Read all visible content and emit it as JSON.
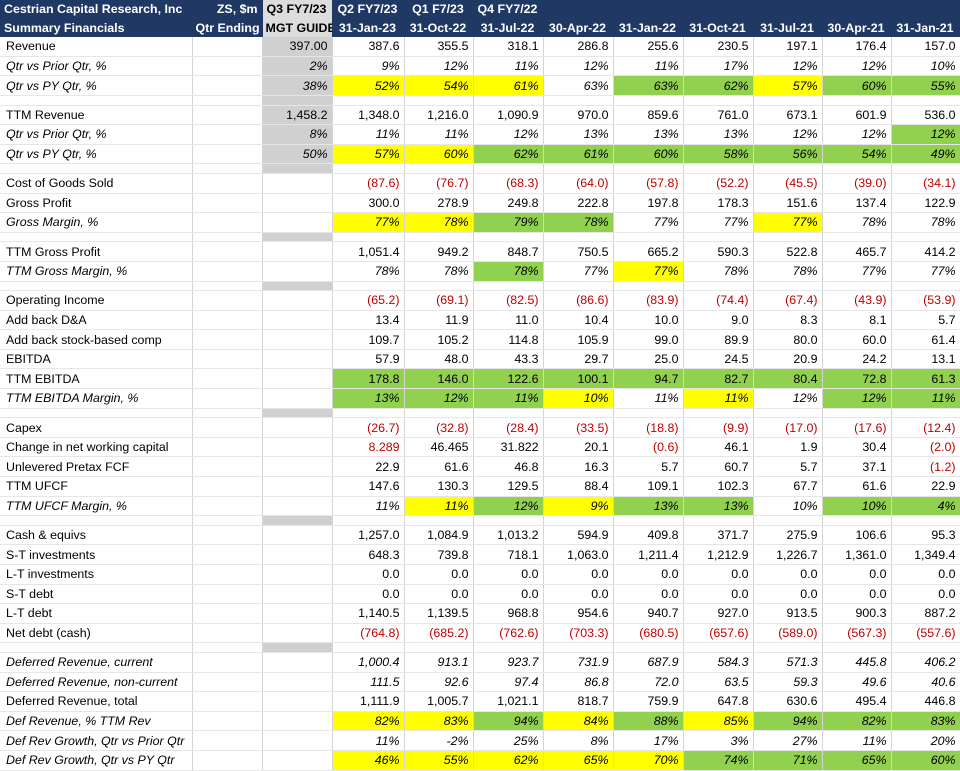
{
  "header": {
    "r1": [
      "Cestrian Capital Research, Inc",
      "ZS, $m",
      "Q3 FY7/23",
      "Q2 FY7/23",
      "Q1 F7/23",
      "Q4 FY7/22",
      "",
      "",
      "",
      "",
      "",
      ""
    ],
    "r2": [
      "Summary Financials",
      "Qtr Ending",
      "MGT GUIDE",
      "31-Jan-23",
      "31-Oct-22",
      "31-Jul-22",
      "30-Apr-22",
      "31-Jan-22",
      "31-Oct-21",
      "31-Jul-21",
      "30-Apr-21",
      "31-Jan-21"
    ]
  },
  "colors": {
    "header_bg": "#1f3864",
    "yellow": "#ffff00",
    "green": "#92d050",
    "grey": "#d0d0d0",
    "negative": "#c00000"
  },
  "rows": [
    {
      "label": "Revenue",
      "guide": "397.00",
      "v": [
        "387.6",
        "355.5",
        "318.1",
        "286.8",
        "255.6",
        "230.5",
        "197.1",
        "176.4",
        "157.0"
      ]
    },
    {
      "label": "Qtr vs Prior Qtr, %",
      "it": true,
      "guide": "2%",
      "v": [
        "9%",
        "12%",
        "11%",
        "12%",
        "11%",
        "17%",
        "12%",
        "12%",
        "10%"
      ]
    },
    {
      "label": "Qtr vs PY Qtr, %",
      "it": true,
      "guide": "38%",
      "v": [
        "52%",
        "54%",
        "61%",
        "63%",
        "63%",
        "62%",
        "57%",
        "60%",
        "55%"
      ],
      "c": [
        "y",
        "y",
        "y",
        "",
        "g",
        "g",
        "y",
        "g",
        "g"
      ]
    },
    {
      "spacer": true
    },
    {
      "label": "TTM Revenue",
      "guide": "1,458.2",
      "v": [
        "1,348.0",
        "1,216.0",
        "1,090.9",
        "970.0",
        "859.6",
        "761.0",
        "673.1",
        "601.9",
        "536.0"
      ]
    },
    {
      "label": "Qtr vs Prior Qtr, %",
      "it": true,
      "guide": "8%",
      "v": [
        "11%",
        "11%",
        "12%",
        "13%",
        "13%",
        "13%",
        "12%",
        "12%",
        "12%"
      ],
      "c": [
        "",
        "",
        "",
        "",
        "",
        "",
        "",
        "",
        "g"
      ]
    },
    {
      "label": "Qtr vs PY Qtr, %",
      "it": true,
      "guide": "50%",
      "v": [
        "57%",
        "60%",
        "62%",
        "61%",
        "60%",
        "58%",
        "56%",
        "54%",
        "49%"
      ],
      "c": [
        "y",
        "y",
        "g",
        "g",
        "g",
        "g",
        "g",
        "g",
        "g"
      ]
    },
    {
      "spacer": true
    },
    {
      "label": "Cost of Goods Sold",
      "v": [
        "(87.6)",
        "(76.7)",
        "(68.3)",
        "(64.0)",
        "(57.8)",
        "(52.2)",
        "(45.5)",
        "(39.0)",
        "(34.1)"
      ],
      "neg": true
    },
    {
      "label": "Gross Profit",
      "v": [
        "300.0",
        "278.9",
        "249.8",
        "222.8",
        "197.8",
        "178.3",
        "151.6",
        "137.4",
        "122.9"
      ]
    },
    {
      "label": "Gross Margin, %",
      "it": true,
      "v": [
        "77%",
        "78%",
        "79%",
        "78%",
        "77%",
        "77%",
        "77%",
        "78%",
        "78%"
      ],
      "c": [
        "y",
        "y",
        "g",
        "g",
        "",
        "",
        "y",
        "",
        ""
      ]
    },
    {
      "spacer": true
    },
    {
      "label": "TTM Gross Profit",
      "v": [
        "1,051.4",
        "949.2",
        "848.7",
        "750.5",
        "665.2",
        "590.3",
        "522.8",
        "465.7",
        "414.2"
      ]
    },
    {
      "label": "TTM Gross Margin, %",
      "it": true,
      "v": [
        "78%",
        "78%",
        "78%",
        "77%",
        "77%",
        "78%",
        "78%",
        "77%",
        "77%"
      ],
      "c": [
        "",
        "",
        "g",
        "",
        "y",
        "",
        "",
        "",
        ""
      ]
    },
    {
      "spacer": true
    },
    {
      "label": "Operating Income",
      "v": [
        "(65.2)",
        "(69.1)",
        "(82.5)",
        "(86.6)",
        "(83.9)",
        "(74.4)",
        "(67.4)",
        "(43.9)",
        "(53.9)"
      ],
      "neg": true
    },
    {
      "label": "Add back D&A",
      "v": [
        "13.4",
        "11.9",
        "11.0",
        "10.4",
        "10.0",
        "9.0",
        "8.3",
        "8.1",
        "5.7"
      ]
    },
    {
      "label": "Add back stock-based comp",
      "v": [
        "109.7",
        "105.2",
        "114.8",
        "105.9",
        "99.0",
        "89.9",
        "80.0",
        "60.0",
        "61.4"
      ]
    },
    {
      "label": "EBITDA",
      "v": [
        "57.9",
        "48.0",
        "43.3",
        "29.7",
        "25.0",
        "24.5",
        "20.9",
        "24.2",
        "13.1"
      ]
    },
    {
      "label": "TTM EBITDA",
      "v": [
        "178.8",
        "146.0",
        "122.6",
        "100.1",
        "94.7",
        "82.7",
        "80.4",
        "72.8",
        "61.3"
      ],
      "c": [
        "g",
        "g",
        "g",
        "g",
        "g",
        "g",
        "g",
        "g",
        "g"
      ]
    },
    {
      "label": "TTM EBITDA Margin, %",
      "it": true,
      "v": [
        "13%",
        "12%",
        "11%",
        "10%",
        "11%",
        "11%",
        "12%",
        "12%",
        "11%"
      ],
      "c": [
        "g",
        "g",
        "g",
        "y",
        "",
        "y",
        "",
        "g",
        "g"
      ]
    },
    {
      "spacer": true
    },
    {
      "label": "Capex",
      "v": [
        "(26.7)",
        "(32.8)",
        "(28.4)",
        "(33.5)",
        "(18.8)",
        "(9.9)",
        "(17.0)",
        "(17.6)",
        "(12.4)"
      ],
      "neg": true
    },
    {
      "label": "Change in net working capital",
      "v": [
        "8.289",
        "46.465",
        "31.822",
        "20.1",
        "(0.6)",
        "46.1",
        "1.9",
        "30.4",
        "(2.0)"
      ],
      "n": [
        1,
        0,
        0,
        0,
        1,
        0,
        0,
        0,
        1
      ]
    },
    {
      "label": "Unlevered Pretax FCF",
      "v": [
        "22.9",
        "61.6",
        "46.8",
        "16.3",
        "5.7",
        "60.7",
        "5.7",
        "37.1",
        "(1.2)"
      ],
      "n": [
        0,
        0,
        0,
        0,
        0,
        0,
        0,
        0,
        1
      ]
    },
    {
      "label": "TTM UFCF",
      "v": [
        "147.6",
        "130.3",
        "129.5",
        "88.4",
        "109.1",
        "102.3",
        "67.7",
        "61.6",
        "22.9"
      ]
    },
    {
      "label": "TTM UFCF Margin, %",
      "it": true,
      "v": [
        "11%",
        "11%",
        "12%",
        "9%",
        "13%",
        "13%",
        "10%",
        "10%",
        "4%"
      ],
      "c": [
        "",
        "y",
        "g",
        "y",
        "g",
        "g",
        "",
        "g",
        "g"
      ]
    },
    {
      "spacer": true
    },
    {
      "label": "Cash & equivs",
      "v": [
        "1,257.0",
        "1,084.9",
        "1,013.2",
        "594.9",
        "409.8",
        "371.7",
        "275.9",
        "106.6",
        "95.3"
      ]
    },
    {
      "label": "S-T investments",
      "v": [
        "648.3",
        "739.8",
        "718.1",
        "1,063.0",
        "1,211.4",
        "1,212.9",
        "1,226.7",
        "1,361.0",
        "1,349.4"
      ]
    },
    {
      "label": "L-T investments",
      "v": [
        "0.0",
        "0.0",
        "0.0",
        "0.0",
        "0.0",
        "0.0",
        "0.0",
        "0.0",
        "0.0"
      ]
    },
    {
      "label": "S-T debt",
      "v": [
        "0.0",
        "0.0",
        "0.0",
        "0.0",
        "0.0",
        "0.0",
        "0.0",
        "0.0",
        "0.0"
      ]
    },
    {
      "label": "L-T debt",
      "v": [
        "1,140.5",
        "1,139.5",
        "968.8",
        "954.6",
        "940.7",
        "927.0",
        "913.5",
        "900.3",
        "887.2"
      ]
    },
    {
      "label": "Net debt (cash)",
      "v": [
        "(764.8)",
        "(685.2)",
        "(762.6)",
        "(703.3)",
        "(680.5)",
        "(657.6)",
        "(589.0)",
        "(567.3)",
        "(557.6)"
      ],
      "neg": true
    },
    {
      "spacer": true
    },
    {
      "label": "Deferred Revenue, current",
      "it": true,
      "v": [
        "1,000.4",
        "913.1",
        "923.7",
        "731.9",
        "687.9",
        "584.3",
        "571.3",
        "445.8",
        "406.2"
      ]
    },
    {
      "label": "Deferred Revenue, non-current",
      "it": true,
      "v": [
        "111.5",
        "92.6",
        "97.4",
        "86.8",
        "72.0",
        "63.5",
        "59.3",
        "49.6",
        "40.6"
      ]
    },
    {
      "label": "Deferred Revenue, total",
      "top": true,
      "v": [
        "1,111.9",
        "1,005.7",
        "1,021.1",
        "818.7",
        "759.9",
        "647.8",
        "630.6",
        "495.4",
        "446.8"
      ]
    },
    {
      "label": "Def Revenue, % TTM Rev",
      "it": true,
      "v": [
        "82%",
        "83%",
        "94%",
        "84%",
        "88%",
        "85%",
        "94%",
        "82%",
        "83%"
      ],
      "c": [
        "y",
        "y",
        "g",
        "y",
        "g",
        "y",
        "g",
        "g",
        "g"
      ]
    },
    {
      "label": "Def Rev Growth, Qtr vs Prior Qtr",
      "it": true,
      "v": [
        "11%",
        "-2%",
        "25%",
        "8%",
        "17%",
        "3%",
        "27%",
        "11%",
        "20%"
      ]
    },
    {
      "label": "Def Rev Growth, Qtr vs PY Qtr",
      "it": true,
      "v": [
        "46%",
        "55%",
        "62%",
        "65%",
        "70%",
        "74%",
        "71%",
        "65%",
        "60%"
      ],
      "c": [
        "y",
        "y",
        "y",
        "y",
        "y",
        "g",
        "g",
        "g",
        "g"
      ]
    }
  ]
}
